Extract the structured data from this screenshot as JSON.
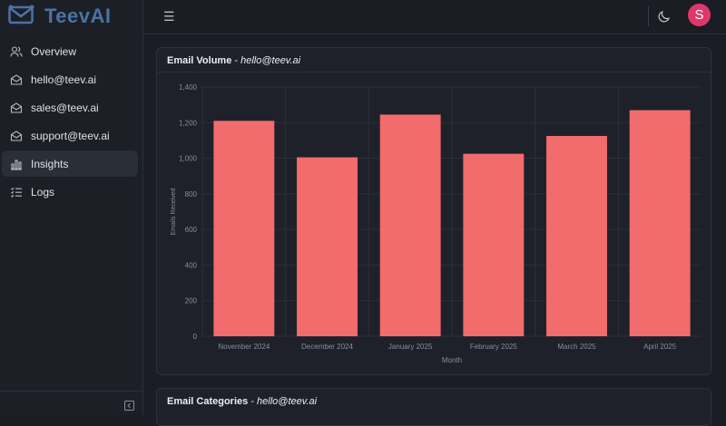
{
  "app": {
    "name": "TeevAI"
  },
  "sidebar": {
    "items": [
      {
        "label": "Overview",
        "icon": "users-icon",
        "active": false
      },
      {
        "label": "hello@teev.ai",
        "icon": "inbox-icon",
        "active": false
      },
      {
        "label": "sales@teev.ai",
        "icon": "inbox-icon",
        "active": false
      },
      {
        "label": "support@teev.ai",
        "icon": "inbox-icon",
        "active": false
      },
      {
        "label": "Insights",
        "icon": "bar-chart-icon",
        "active": true
      },
      {
        "label": "Logs",
        "icon": "list-icon",
        "active": false
      }
    ]
  },
  "header": {
    "menu_icon": "hamburger-icon",
    "theme_icon": "moon-icon",
    "avatar_initial": "S",
    "avatar_color": "#e0376a"
  },
  "cards": {
    "volume": {
      "title_bold": "Email Volume",
      "title_sep": " - ",
      "title_account": "hello@teev.ai"
    },
    "categories": {
      "title_bold": "Email Categories",
      "title_sep": " - ",
      "title_account": "hello@teev.ai"
    }
  },
  "colors": {
    "accent": "#4c72a6",
    "bar": "#f26b6d"
  },
  "chart_data": {
    "type": "bar",
    "categories": [
      "November 2024",
      "December 2024",
      "January 2025",
      "February 2025",
      "March 2025",
      "April 2025"
    ],
    "values": [
      1210,
      1005,
      1245,
      1025,
      1125,
      1270
    ],
    "xlabel": "Month",
    "ylabel": "Emails Received",
    "ylim": [
      0,
      1400
    ],
    "yticks": [
      "0",
      "200",
      "400",
      "600",
      "800",
      "1,000",
      "1,200",
      "1,400"
    ],
    "grid": true
  }
}
